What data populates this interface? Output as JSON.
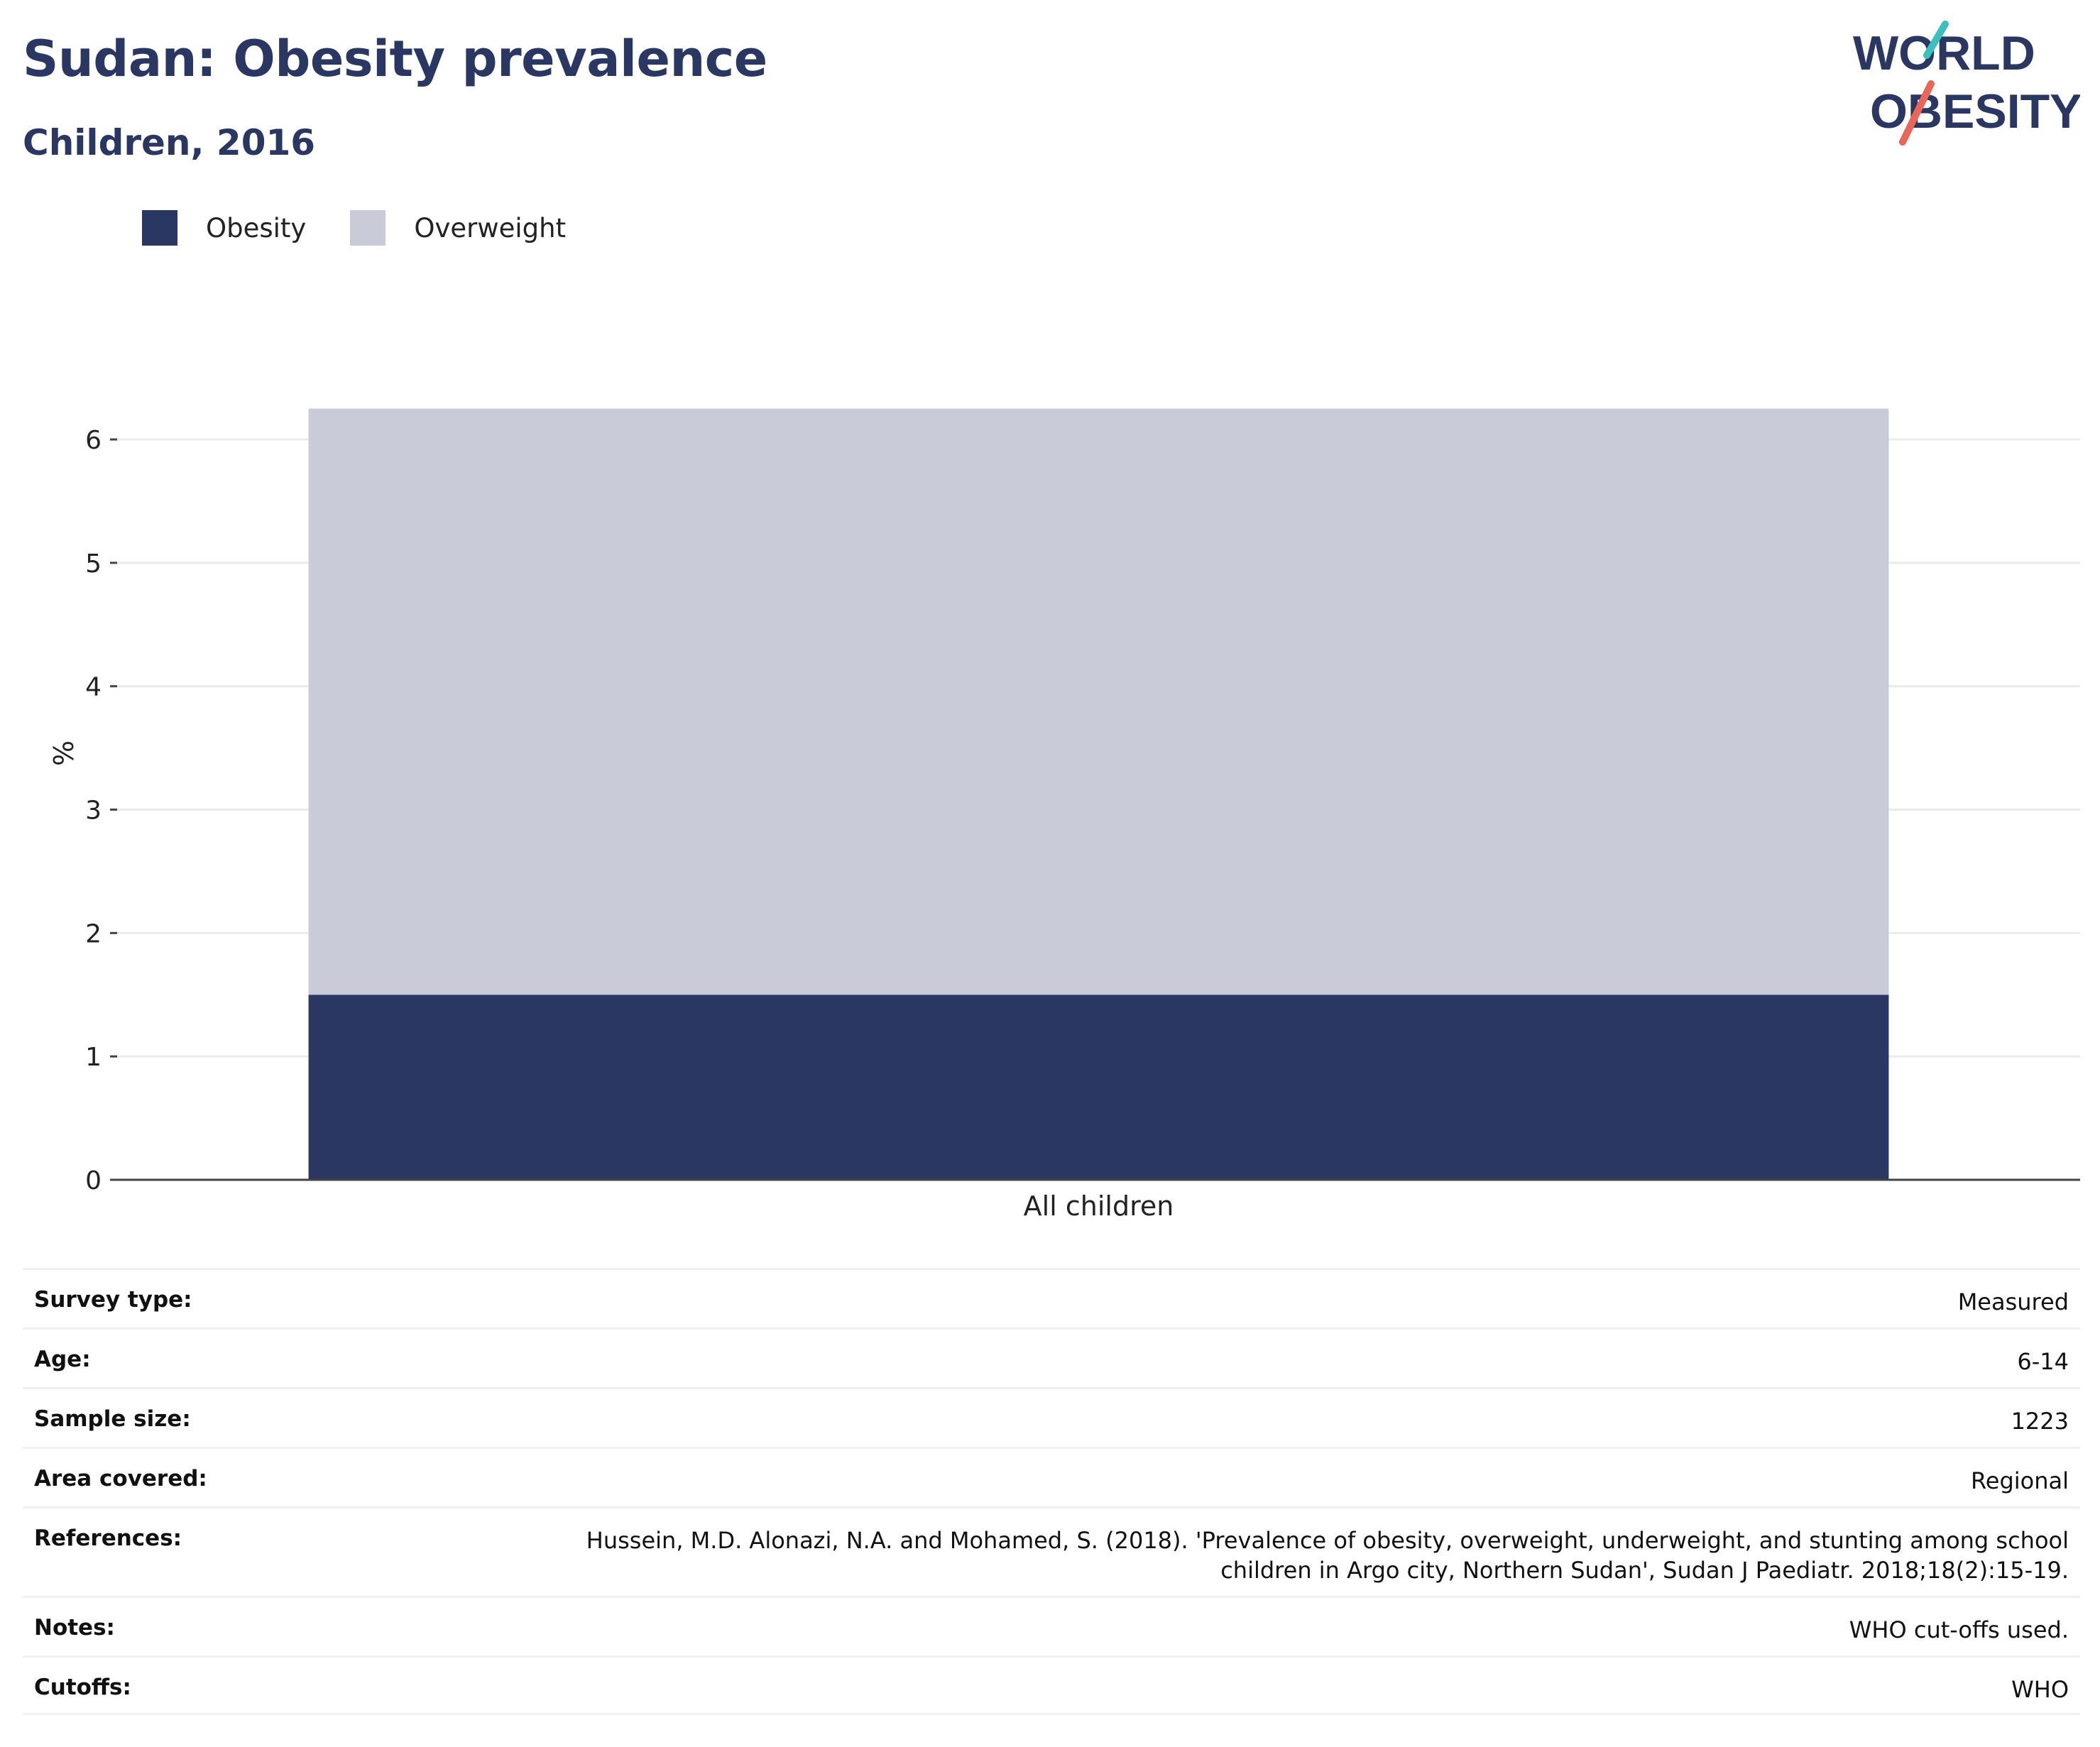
{
  "header": {
    "title": "Sudan: Obesity prevalence",
    "subtitle": "Children, 2016"
  },
  "logo": {
    "line1": "WORLD",
    "line2": "OBESITY",
    "text_color": "#2a3763",
    "slash_top_color": "#3bbfbf",
    "slash_bottom_color": "#e8675a"
  },
  "legend": {
    "items": [
      {
        "label": "Obesity",
        "color": "#2a3763"
      },
      {
        "label": "Overweight",
        "color": "#c9ccd8"
      }
    ]
  },
  "chart_data": {
    "type": "bar",
    "stacked": true,
    "categories": [
      "All children"
    ],
    "series": [
      {
        "name": "Obesity",
        "values": [
          1.5
        ],
        "color": "#2a3763"
      },
      {
        "name": "Overweight",
        "values": [
          4.75
        ],
        "color": "#c9ccd8"
      }
    ],
    "xlabel": "",
    "ylabel": "%",
    "ylim": [
      0,
      6.8
    ],
    "yticks": [
      0,
      1,
      2,
      3,
      4,
      5,
      6
    ],
    "grid": true,
    "legend_position": "top-left"
  },
  "details": {
    "rows": [
      {
        "label": "Survey type:",
        "value": "Measured"
      },
      {
        "label": "Age:",
        "value": "6-14"
      },
      {
        "label": "Sample size:",
        "value": "1223"
      },
      {
        "label": "Area covered:",
        "value": "Regional"
      },
      {
        "label": "References:",
        "value": "Hussein, M.D. Alonazi, N.A. and Mohamed, S. (2018). 'Prevalence of obesity, overweight, underweight, and stunting among school children in Argo city, Northern Sudan', Sudan J Paediatr. 2018;18(2):15-19."
      },
      {
        "label": "Notes:",
        "value": "WHO cut-offs used."
      },
      {
        "label": "Cutoffs:",
        "value": "WHO"
      }
    ]
  }
}
